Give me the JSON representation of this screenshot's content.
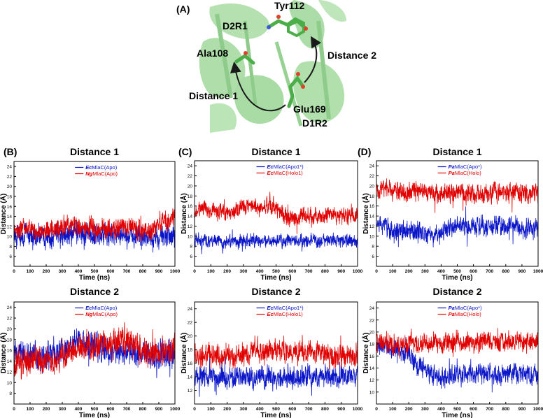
{
  "panel_a": {
    "label": "(A)",
    "residues": [
      "Tyr112",
      "D2R1",
      "Ala108",
      "Distance 2",
      "Distance 1",
      "Glu169",
      "D1R2"
    ],
    "colors": {
      "ribbon": "#8fd28a",
      "stick": "#4cae48",
      "oxygen": "#e0412c",
      "nitrogen": "#3b5bd6",
      "arrow": "#1a1a1a"
    }
  },
  "colors": {
    "blue": "#0b16c8",
    "red": "#e00000"
  },
  "chart_data": [
    {
      "id": "B1",
      "panel_label": "(B)",
      "type": "line",
      "title": "Distance 1",
      "xlabel": "Time (ns)",
      "ylabel": "Distance (Å)",
      "xlim": [
        0,
        1000
      ],
      "ylim": [
        4,
        25
      ],
      "xticks": [
        0,
        100,
        200,
        300,
        400,
        500,
        600,
        700,
        800,
        900,
        1000
      ],
      "yticks": [
        6,
        8,
        10,
        12,
        14,
        16,
        18,
        20,
        22,
        24
      ],
      "series": [
        {
          "name": "EcMlaC(Apo)",
          "prefix": "Ec",
          "suffix": "MlaC(Apo)",
          "color": "#0b16c8",
          "x": [
            0,
            50,
            100,
            150,
            200,
            250,
            300,
            350,
            400,
            450,
            500,
            550,
            600,
            650,
            700,
            750,
            800,
            850,
            900,
            950,
            1000
          ],
          "values": [
            10,
            10.5,
            10,
            10,
            9.5,
            10,
            10.5,
            10.5,
            10.5,
            10,
            10,
            10.5,
            10,
            10.5,
            10.5,
            10,
            10,
            10,
            9.5,
            10,
            10
          ],
          "spread": 3.5
        },
        {
          "name": "NgMlaC(Apo)",
          "prefix": "Ng",
          "suffix": "MlaC(Apo)",
          "color": "#e00000",
          "x": [
            0,
            50,
            100,
            150,
            200,
            250,
            300,
            350,
            400,
            450,
            500,
            550,
            600,
            650,
            700,
            750,
            800,
            850,
            900,
            950,
            1000
          ],
          "values": [
            11,
            11.5,
            11.5,
            11,
            11.5,
            11.5,
            12,
            12,
            12,
            12,
            11.5,
            11.5,
            11.5,
            12,
            12.5,
            12,
            11,
            11,
            12.5,
            13.5,
            14
          ],
          "spread": 3
        }
      ]
    },
    {
      "id": "C1",
      "panel_label": "(C)",
      "type": "line",
      "title": "Distance 1",
      "xlabel": "Time (ns)",
      "ylabel": "Distance (Å)",
      "xlim": [
        0,
        1000
      ],
      "ylim": [
        4,
        25
      ],
      "xticks": [
        0,
        100,
        200,
        300,
        400,
        500,
        600,
        700,
        800,
        900,
        1000
      ],
      "yticks": [
        6,
        8,
        10,
        12,
        14,
        16,
        18,
        20,
        22,
        24
      ],
      "series": [
        {
          "name": "EcMlaC(Apo1*)",
          "prefix": "Ec",
          "suffix": "MlaC(Apo1*)",
          "color": "#0b16c8",
          "x": [
            0,
            50,
            100,
            150,
            200,
            250,
            300,
            350,
            400,
            450,
            500,
            550,
            600,
            650,
            700,
            750,
            800,
            850,
            900,
            950,
            1000
          ],
          "values": [
            9,
            9,
            9,
            9,
            9,
            9,
            9,
            9,
            9,
            9,
            9,
            9,
            9,
            9,
            9,
            9,
            9,
            9,
            9,
            9,
            9
          ],
          "spread": 2
        },
        {
          "name": "EcMlaC(Holo1)",
          "prefix": "Ec",
          "suffix": "MlaC(Holo1)",
          "color": "#e00000",
          "x": [
            0,
            50,
            100,
            150,
            200,
            250,
            300,
            350,
            400,
            450,
            500,
            550,
            600,
            650,
            700,
            750,
            800,
            850,
            900,
            950,
            1000
          ],
          "values": [
            14.5,
            15.5,
            15,
            15,
            14.5,
            15,
            16,
            16.5,
            15.5,
            16,
            15.5,
            14,
            13.5,
            14,
            14,
            14,
            14,
            14,
            14,
            14,
            14
          ],
          "spread": 2.5
        }
      ]
    },
    {
      "id": "D1",
      "panel_label": "(D)",
      "type": "line",
      "title": "Distance 1",
      "xlabel": "Time (ns)",
      "ylabel": "Distance (Å)",
      "xlim": [
        0,
        1000
      ],
      "ylim": [
        4,
        25
      ],
      "xticks": [
        0,
        100,
        200,
        300,
        400,
        500,
        600,
        700,
        800,
        900,
        1000
      ],
      "yticks": [
        6,
        8,
        10,
        12,
        14,
        16,
        18,
        20,
        22,
        24
      ],
      "series": [
        {
          "name": "PaMlaC(Apo*)",
          "prefix": "Pa",
          "suffix": "MlaC(Apo*)",
          "color": "#0b16c8",
          "x": [
            0,
            50,
            100,
            150,
            200,
            250,
            300,
            350,
            400,
            450,
            500,
            550,
            600,
            650,
            700,
            750,
            800,
            850,
            900,
            950,
            1000
          ],
          "values": [
            12.5,
            12,
            11,
            10.5,
            11,
            11,
            10.5,
            10,
            11,
            11.5,
            12,
            12,
            12,
            12,
            12,
            12,
            12,
            12,
            11.5,
            11.5,
            11.5
          ],
          "spread": 3
        },
        {
          "name": "PaMlaC(Holo)",
          "prefix": "Pa",
          "suffix": "MlaC(Holo)",
          "color": "#e00000",
          "x": [
            0,
            50,
            100,
            150,
            200,
            250,
            300,
            350,
            400,
            450,
            500,
            550,
            600,
            650,
            700,
            750,
            800,
            850,
            900,
            950,
            1000
          ],
          "values": [
            19.5,
            19.5,
            19,
            19,
            19,
            19,
            18.5,
            18.5,
            18,
            18.5,
            18.5,
            18.5,
            18.5,
            18.5,
            18.5,
            18.5,
            18.5,
            18.5,
            18.5,
            18.5,
            18.5
          ],
          "spread": 3
        }
      ]
    },
    {
      "id": "B2",
      "panel_label": "",
      "type": "line",
      "title": "Distance 2",
      "xlabel": "Time (ns)",
      "ylabel": "Distance (Å)",
      "xlim": [
        0,
        1000
      ],
      "ylim": [
        6,
        25
      ],
      "xticks": [
        0,
        100,
        200,
        300,
        400,
        500,
        600,
        700,
        800,
        900,
        1000
      ],
      "yticks": [
        8,
        10,
        12,
        14,
        16,
        18,
        20,
        22,
        24
      ],
      "series": [
        {
          "name": "EcMlaC(Apo)",
          "prefix": "Ec",
          "suffix": "MlaC(Apo)",
          "color": "#0b16c8",
          "x": [
            0,
            50,
            100,
            150,
            200,
            250,
            300,
            350,
            400,
            450,
            500,
            550,
            600,
            650,
            700,
            750,
            800,
            850,
            900,
            950,
            1000
          ],
          "values": [
            15,
            16,
            15,
            14.5,
            15,
            15,
            16,
            17,
            17,
            17,
            16.5,
            16,
            16,
            16,
            16,
            15.5,
            15.5,
            15,
            15,
            15,
            15
          ],
          "spread": 4
        },
        {
          "name": "NgMlaC(Apo)",
          "prefix": "Ng",
          "suffix": "MlaC(Apo)",
          "color": "#e00000",
          "x": [
            0,
            50,
            100,
            150,
            200,
            250,
            300,
            350,
            400,
            450,
            500,
            550,
            600,
            650,
            700,
            750,
            800,
            850,
            900,
            950,
            1000
          ],
          "values": [
            14,
            13.5,
            14,
            14.5,
            14,
            14,
            15,
            16,
            16.5,
            16.5,
            17,
            17.5,
            17,
            17.5,
            18,
            17.5,
            16,
            15,
            15.5,
            16,
            16.5
          ],
          "spread": 4
        }
      ]
    },
    {
      "id": "C2",
      "panel_label": "",
      "type": "line",
      "title": "Distance 2",
      "xlabel": "Time (ns)",
      "ylabel": "Distance (Å)",
      "xlim": [
        0,
        1000
      ],
      "ylim": [
        10,
        25
      ],
      "xticks": [
        0,
        100,
        200,
        300,
        400,
        500,
        600,
        700,
        800,
        900,
        1000
      ],
      "yticks": [
        12,
        14,
        16,
        18,
        20,
        22,
        24
      ],
      "series": [
        {
          "name": "EcMlaC(Apo1*)",
          "prefix": "Ec",
          "suffix": "MlaC(Apo1*)",
          "color": "#0b16c8",
          "x": [
            0,
            50,
            100,
            150,
            200,
            250,
            300,
            350,
            400,
            450,
            500,
            550,
            600,
            650,
            700,
            750,
            800,
            850,
            900,
            950,
            1000
          ],
          "values": [
            14,
            14,
            14,
            14,
            14,
            14,
            14,
            14,
            14,
            14,
            14,
            14,
            14,
            14,
            14,
            14,
            14,
            14,
            14,
            14,
            14
          ],
          "spread": 2.5
        },
        {
          "name": "EcMlaC(Holo1)",
          "prefix": "Ec",
          "suffix": "MlaC(Holo1)",
          "color": "#e00000",
          "x": [
            0,
            50,
            100,
            150,
            200,
            250,
            300,
            350,
            400,
            450,
            500,
            550,
            600,
            650,
            700,
            750,
            800,
            850,
            900,
            950,
            1000
          ],
          "values": [
            17,
            17,
            17,
            17,
            17,
            17,
            17.5,
            17.5,
            18,
            18,
            18,
            18,
            17.5,
            17.5,
            17.5,
            17.5,
            17.5,
            17,
            17,
            17,
            17
          ],
          "spread": 2.5
        }
      ]
    },
    {
      "id": "D2",
      "panel_label": "",
      "type": "line",
      "title": "Distance 2",
      "xlabel": "Time (ns)",
      "ylabel": "Distance (Å)",
      "xlim": [
        0,
        1000
      ],
      "ylim": [
        8,
        25
      ],
      "xticks": [
        0,
        100,
        200,
        300,
        400,
        500,
        600,
        700,
        800,
        900,
        1000
      ],
      "yticks": [
        10,
        12,
        14,
        16,
        18,
        20,
        22,
        24
      ],
      "series": [
        {
          "name": "PaMlaC(Apo*)",
          "prefix": "Pa",
          "suffix": "MlaC(Apo*)",
          "color": "#0b16c8",
          "x": [
            0,
            50,
            100,
            150,
            200,
            250,
            300,
            350,
            400,
            450,
            500,
            550,
            600,
            650,
            700,
            750,
            800,
            850,
            900,
            950,
            1000
          ],
          "values": [
            17.5,
            17.5,
            17,
            16.5,
            16,
            15,
            13.5,
            13,
            12.5,
            12.5,
            13,
            13,
            13,
            13,
            13,
            13,
            13,
            13,
            13,
            13,
            13
          ],
          "spread": 2.5
        },
        {
          "name": "PaMlaC(Holo)",
          "prefix": "Pa",
          "suffix": "MlaC(Holo)",
          "color": "#e00000",
          "x": [
            0,
            50,
            100,
            150,
            200,
            250,
            300,
            350,
            400,
            450,
            500,
            550,
            600,
            650,
            700,
            750,
            800,
            850,
            900,
            950,
            1000
          ],
          "values": [
            18.5,
            18,
            18,
            18,
            18,
            18,
            18,
            18,
            18,
            18,
            18.5,
            18.5,
            18.5,
            18.5,
            18.5,
            18.5,
            18.5,
            18.5,
            18.5,
            18.5,
            19
          ],
          "spread": 2.5
        }
      ]
    }
  ]
}
